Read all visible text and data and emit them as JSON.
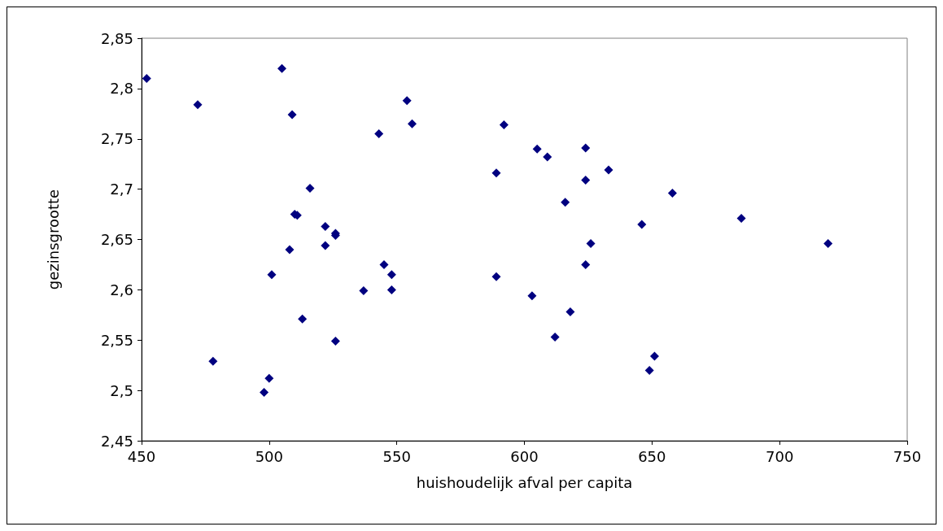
{
  "chart_data": {
    "type": "scatter",
    "xlabel": "huishoudelijk afval per capita",
    "ylabel": "gezinsgrootte",
    "color": "#000080",
    "marker": "diamond",
    "grid": false,
    "x": [
      452,
      472,
      505,
      509,
      554,
      556,
      543,
      592,
      605,
      609,
      624,
      589,
      624,
      633,
      516,
      616,
      658,
      510,
      511,
      685,
      522,
      526,
      526,
      646,
      522,
      508,
      719,
      626,
      545,
      548,
      501,
      589,
      624,
      537,
      548,
      603,
      513,
      618,
      526,
      612,
      478,
      651,
      649,
      500,
      498
    ],
    "values": [
      2.81,
      2.784,
      2.82,
      2.774,
      2.788,
      2.765,
      2.755,
      2.764,
      2.74,
      2.732,
      2.741,
      2.716,
      2.709,
      2.719,
      2.701,
      2.687,
      2.696,
      2.675,
      2.674,
      2.671,
      2.663,
      2.654,
      2.656,
      2.665,
      2.644,
      2.64,
      2.646,
      2.646,
      2.625,
      2.615,
      2.615,
      2.613,
      2.625,
      2.599,
      2.6,
      2.594,
      2.571,
      2.578,
      2.549,
      2.553,
      2.529,
      2.534,
      2.52,
      2.512,
      2.498
    ],
    "xlim": [
      450,
      750
    ],
    "xticks": [
      450,
      500,
      550,
      600,
      650,
      700,
      750
    ],
    "ylim": [
      2.45,
      2.85
    ],
    "yticks": [
      {
        "value": 2.45,
        "label": "2,45"
      },
      {
        "value": 2.5,
        "label": "2,5"
      },
      {
        "value": 2.55,
        "label": "2,55"
      },
      {
        "value": 2.6,
        "label": "2,6"
      },
      {
        "value": 2.65,
        "label": "2,65"
      },
      {
        "value": 2.7,
        "label": "2,7"
      },
      {
        "value": 2.75,
        "label": "2,75"
      },
      {
        "value": 2.8,
        "label": "2,8"
      },
      {
        "value": 2.85,
        "label": "2,85"
      }
    ]
  }
}
